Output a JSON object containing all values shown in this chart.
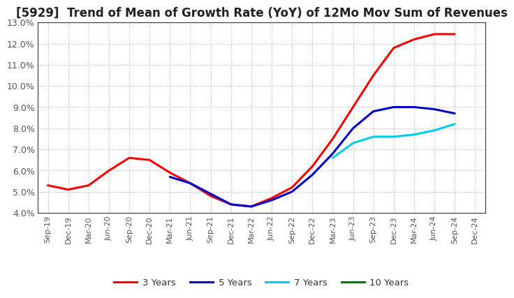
{
  "title": "[5929]  Trend of Mean of Growth Rate (YoY) of 12Mo Mov Sum of Revenues",
  "ylim": [
    0.04,
    0.13
  ],
  "yticks": [
    0.04,
    0.05,
    0.06,
    0.07,
    0.08,
    0.09,
    0.1,
    0.11,
    0.12,
    0.13
  ],
  "ytick_labels": [
    "4.0%",
    "5.0%",
    "6.0%",
    "7.0%",
    "8.0%",
    "9.0%",
    "10.0%",
    "11.0%",
    "12.0%",
    "13.0%"
  ],
  "x_labels": [
    "Sep-19",
    "Dec-19",
    "Mar-20",
    "Jun-20",
    "Sep-20",
    "Dec-20",
    "Mar-21",
    "Jun-21",
    "Sep-21",
    "Dec-21",
    "Mar-22",
    "Jun-22",
    "Sep-22",
    "Dec-22",
    "Mar-23",
    "Jun-23",
    "Sep-23",
    "Dec-23",
    "Mar-24",
    "Jun-24",
    "Sep-24",
    "Dec-24"
  ],
  "series": [
    {
      "name": "3 Years",
      "color": "#ff0000",
      "values": [
        0.053,
        0.051,
        0.053,
        0.06,
        0.066,
        0.065,
        0.059,
        0.054,
        0.048,
        0.044,
        0.043,
        0.047,
        0.052,
        0.062,
        0.075,
        0.09,
        0.105,
        0.118,
        0.122,
        0.1245,
        0.1245,
        null
      ]
    },
    {
      "name": "5 Years",
      "color": "#0000cc",
      "values": [
        null,
        null,
        null,
        null,
        null,
        null,
        0.057,
        0.054,
        0.049,
        0.044,
        0.043,
        0.046,
        0.05,
        0.058,
        0.068,
        0.08,
        0.088,
        0.09,
        0.09,
        0.089,
        0.087,
        null
      ]
    },
    {
      "name": "7 Years",
      "color": "#00ccee",
      "values": [
        null,
        null,
        null,
        null,
        null,
        null,
        null,
        null,
        null,
        null,
        null,
        null,
        null,
        null,
        0.066,
        0.073,
        0.076,
        0.076,
        0.077,
        0.079,
        0.082,
        null
      ]
    },
    {
      "name": "10 Years",
      "color": "#007700",
      "values": [
        null,
        null,
        null,
        null,
        null,
        null,
        null,
        null,
        null,
        null,
        null,
        null,
        null,
        null,
        null,
        null,
        null,
        null,
        null,
        null,
        null,
        null
      ]
    }
  ],
  "background_color": "#ffffff",
  "grid_color": "#aaaaaa",
  "title_fontsize": 12,
  "tick_color": "#555555",
  "linewidth": 2.2
}
